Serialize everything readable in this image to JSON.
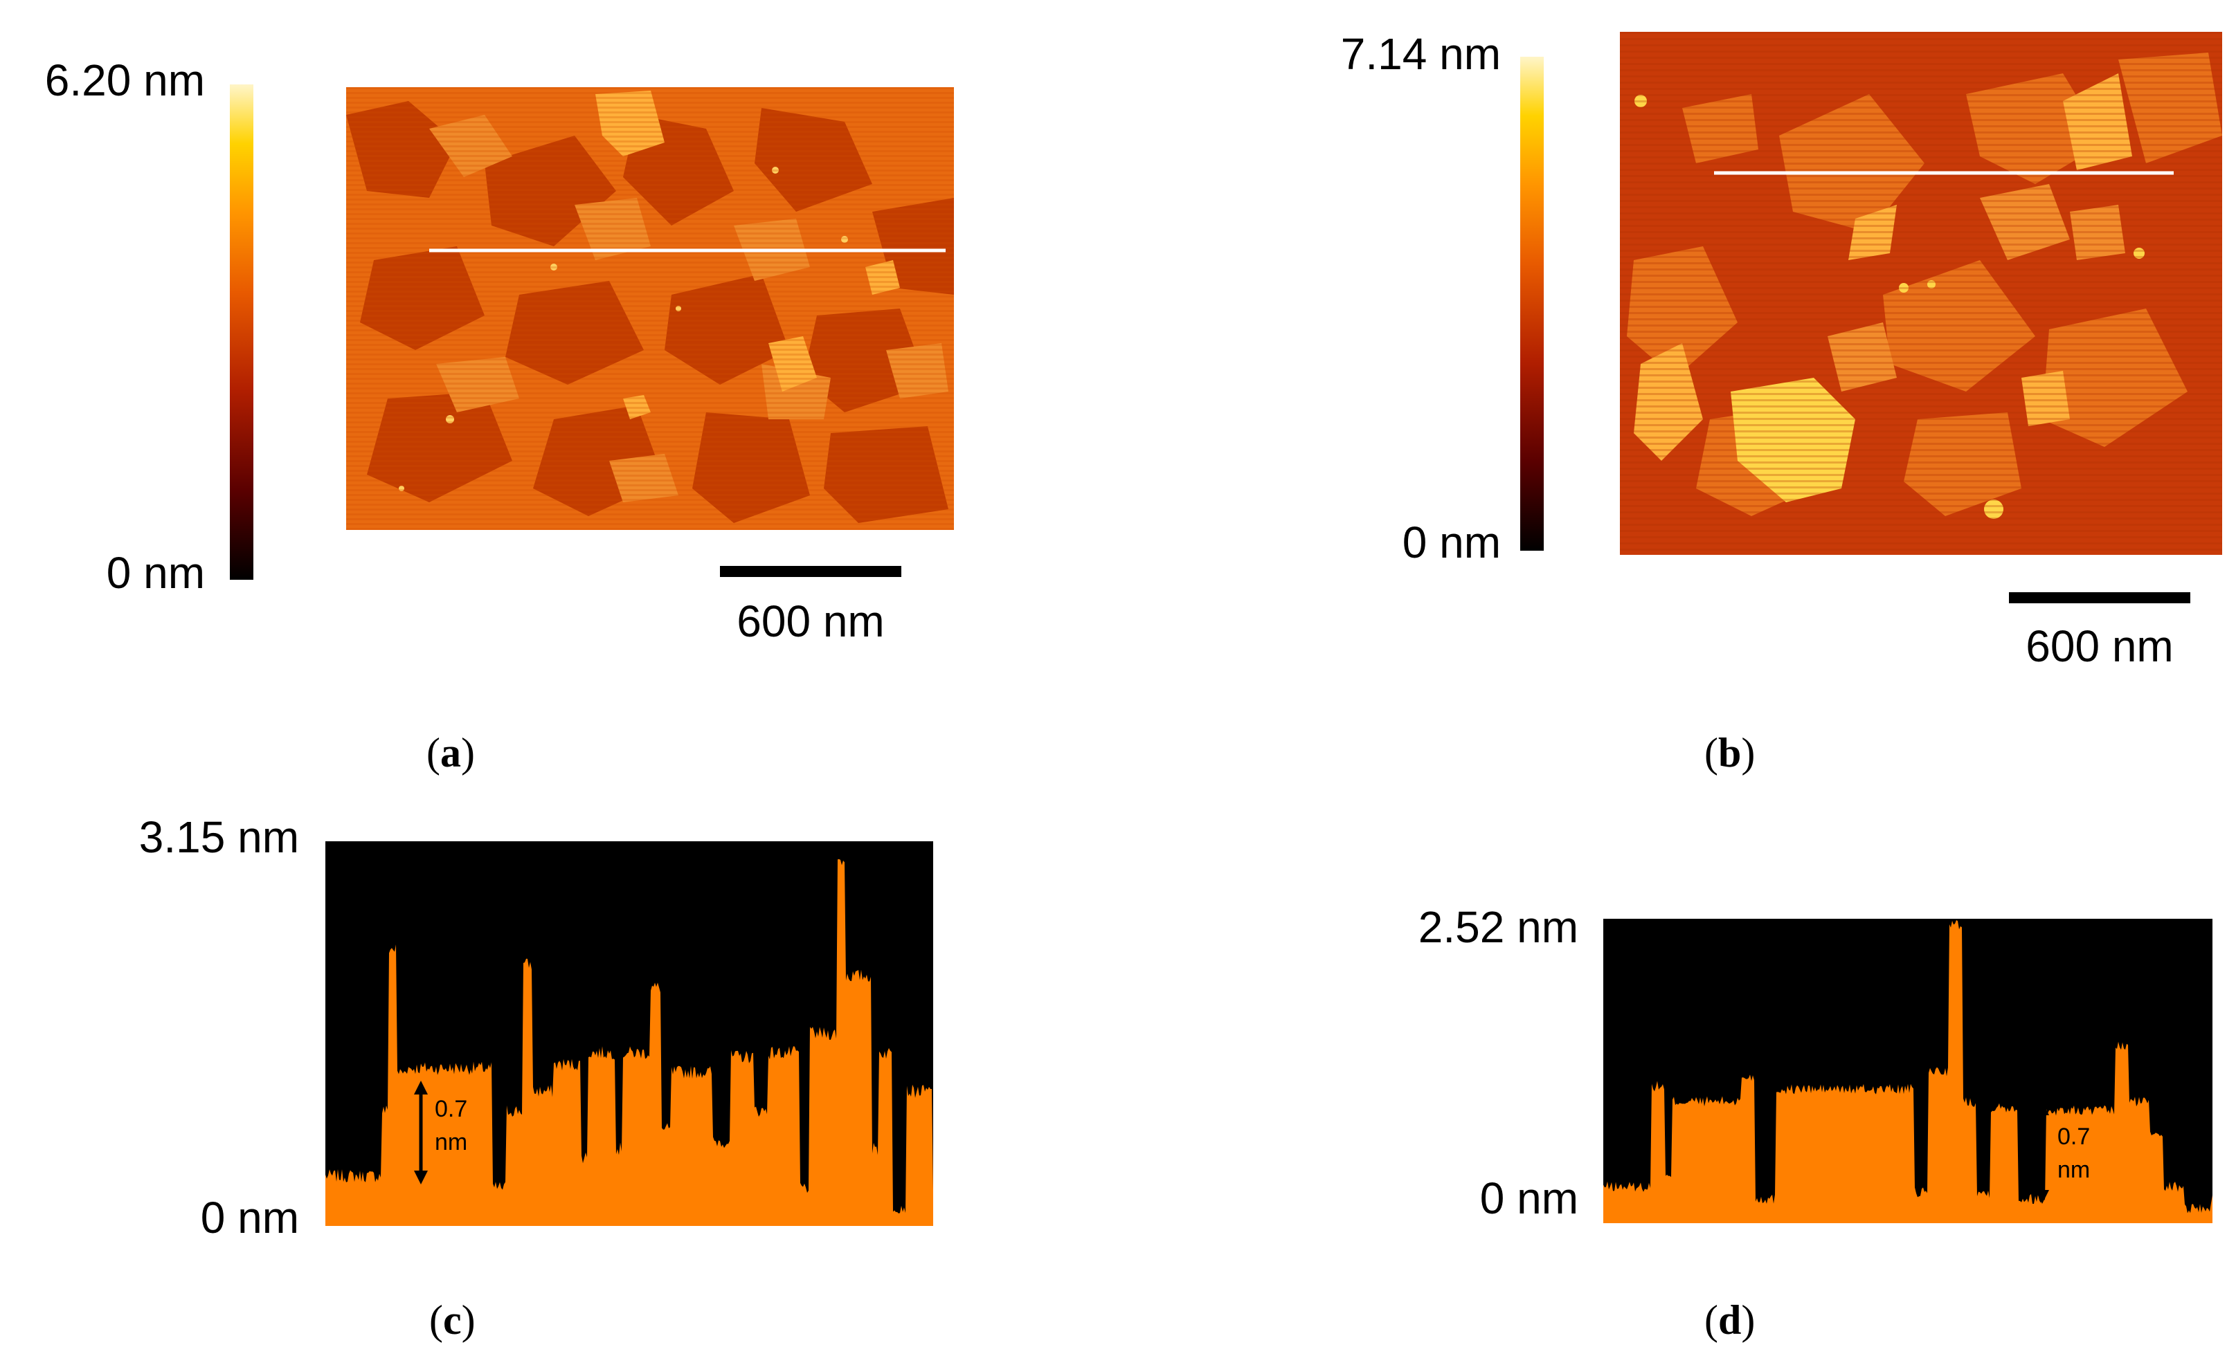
{
  "panel_a": {
    "caption_letter": "a",
    "colorbar_max": "6.20 nm",
    "colorbar_min": "0 nm",
    "scalebar": "600 nm"
  },
  "panel_b": {
    "caption_letter": "b",
    "colorbar_max": "7.14 nm",
    "colorbar_min": "0 nm",
    "scalebar": "600 nm"
  },
  "panel_c": {
    "caption_letter": "c",
    "y_max": "3.15 nm",
    "y_min": "0 nm",
    "step_value": "0.7",
    "step_unit": "nm"
  },
  "panel_d": {
    "caption_letter": "d",
    "y_max": "2.52 nm",
    "y_min": "0 nm",
    "step_value": "0.7",
    "step_unit": "nm"
  },
  "colors": {
    "profile_fill": "#ff8000",
    "profile_background": "#000000",
    "colormap": [
      "#000000",
      "#5a0000",
      "#b01e00",
      "#e85a00",
      "#ff9500",
      "#ffd200",
      "#fff5c8"
    ]
  }
}
